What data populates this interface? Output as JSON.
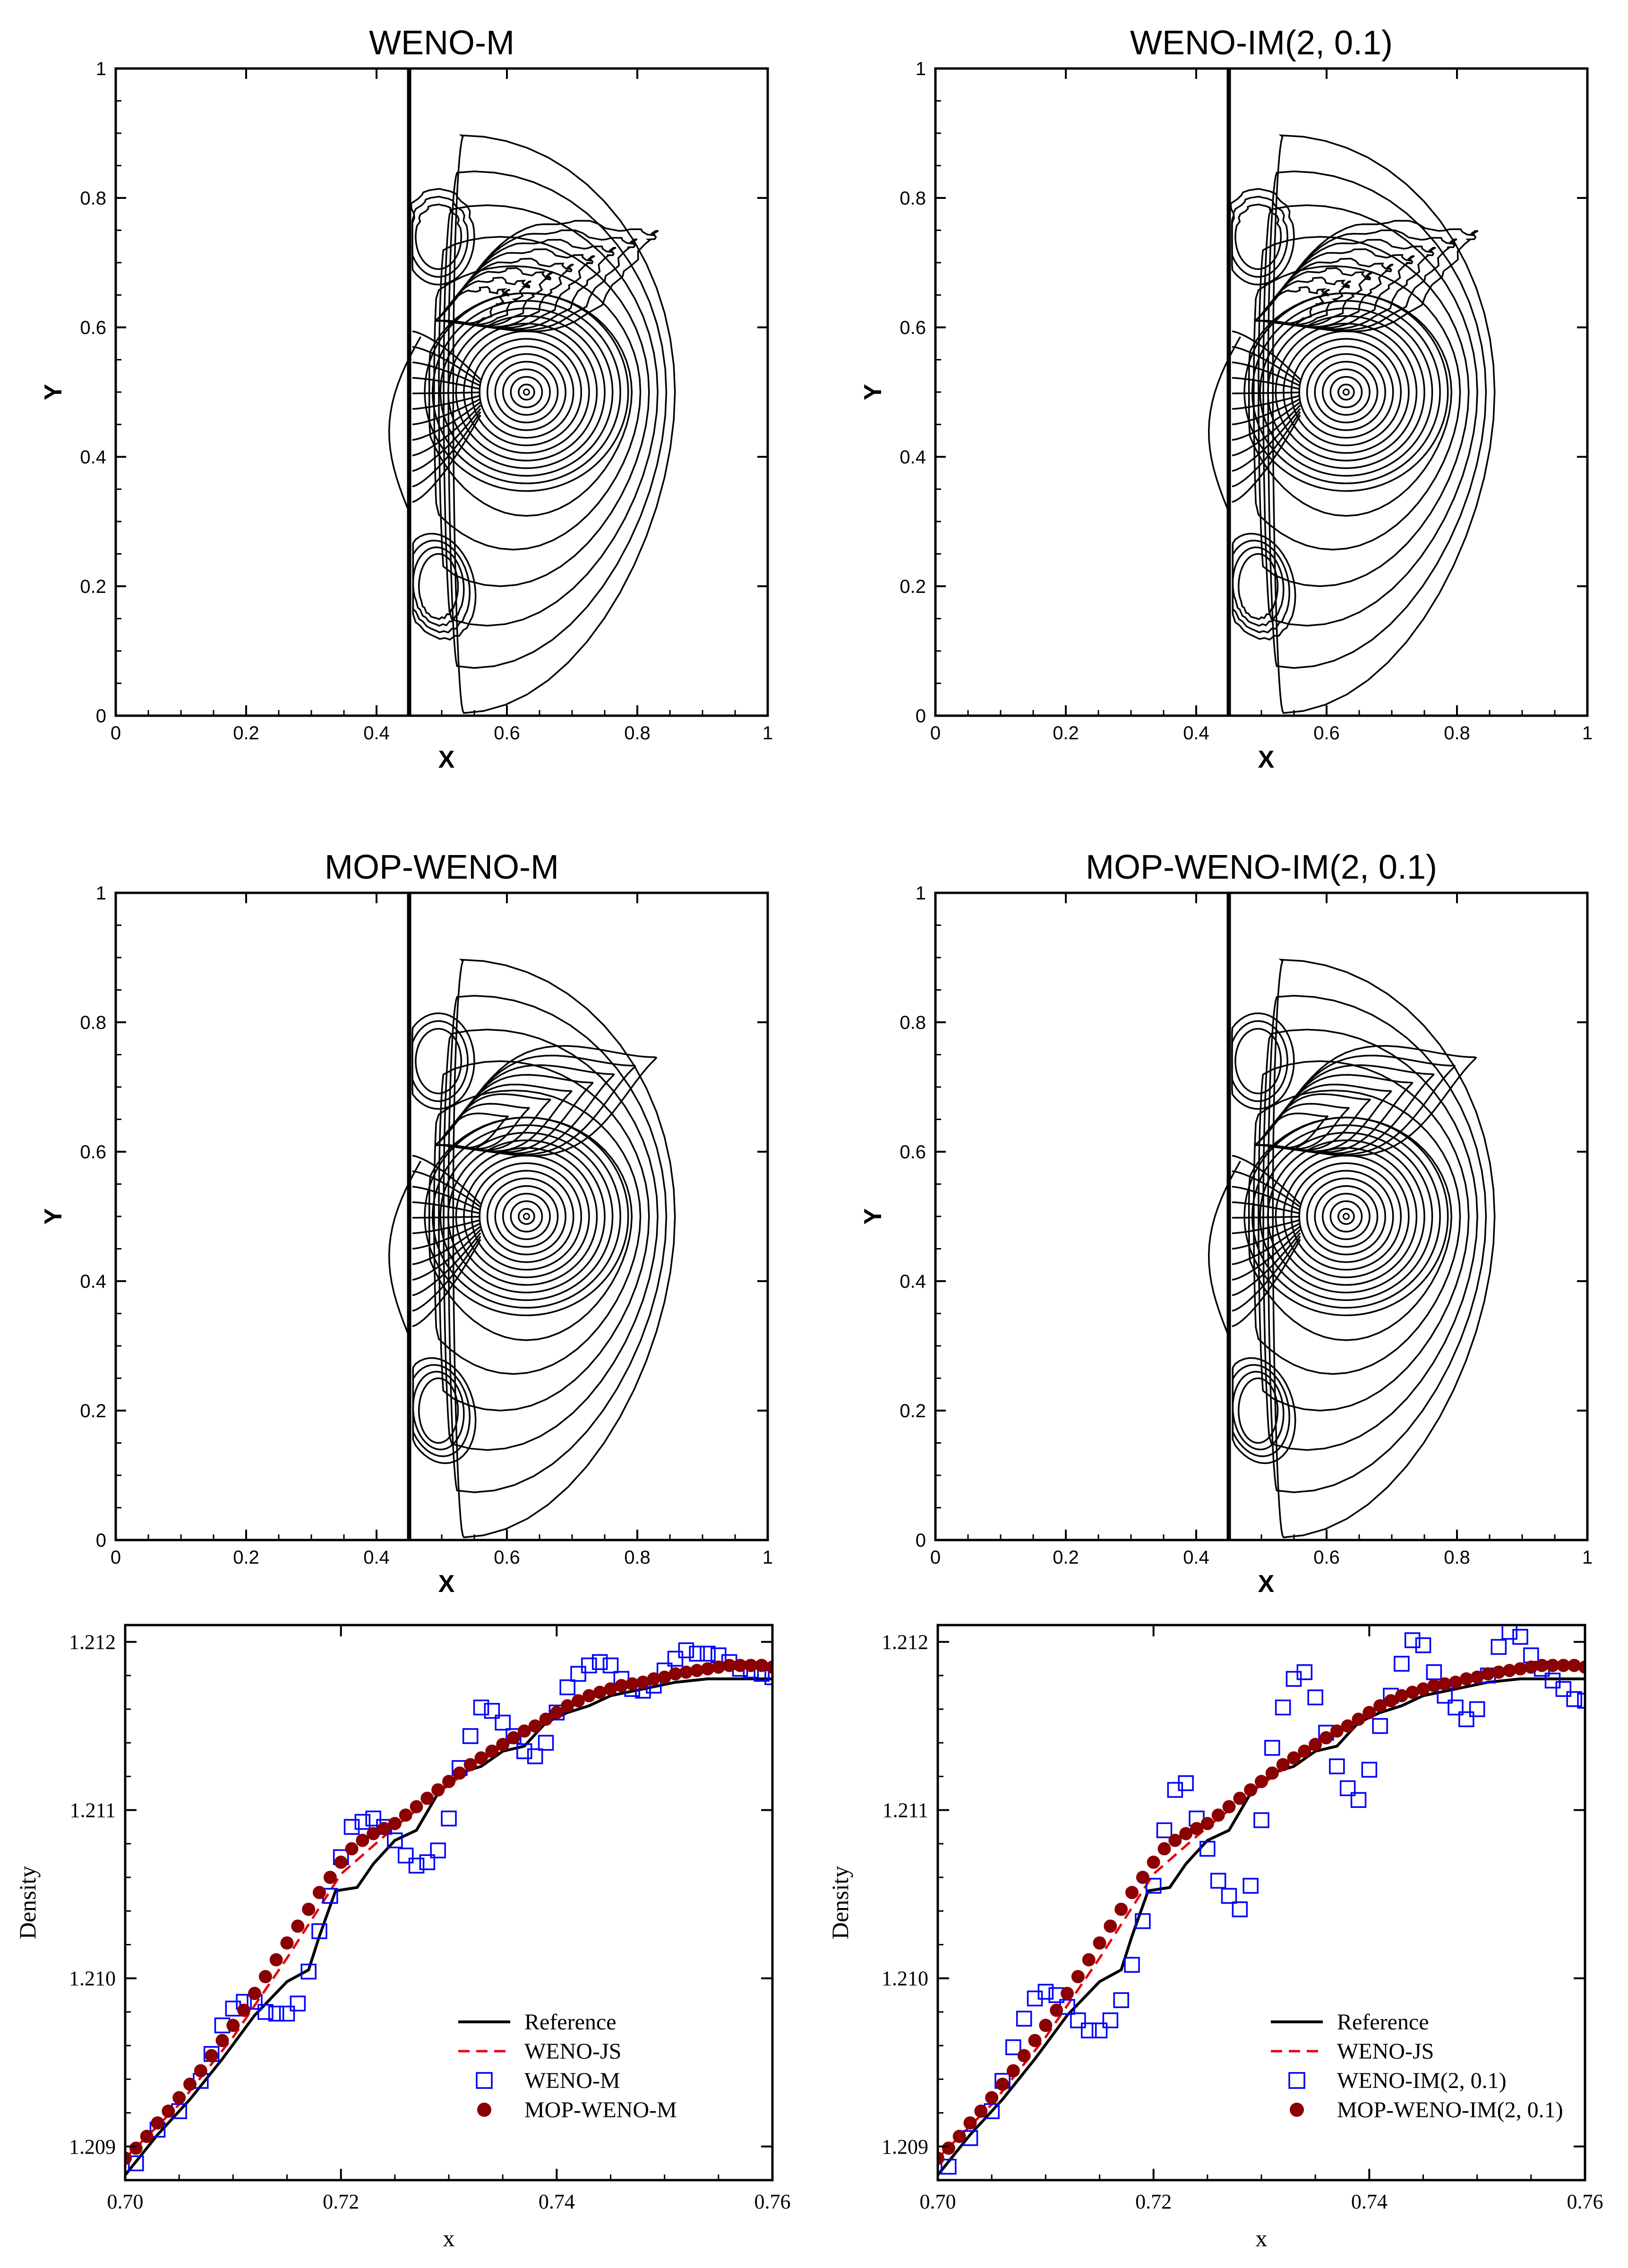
{
  "chart_data": [
    {
      "type": "contour",
      "title": "WENO-M",
      "xlabel": "X",
      "ylabel": "Y",
      "xlim": [
        0,
        1
      ],
      "ylim": [
        0,
        1
      ],
      "xticks": [
        "0",
        "0.2",
        "0.4",
        "0.6",
        "0.8",
        "1"
      ],
      "yticks": [
        "0",
        "0.2",
        "0.4",
        "0.6",
        "0.8",
        "1"
      ],
      "features": {
        "shock_x": 0.45,
        "vortex_center": [
          0.63,
          0.5
        ],
        "noisy_upper_lobe": true
      }
    },
    {
      "type": "contour",
      "title": "WENO-IM(2, 0.1)",
      "xlabel": "X",
      "ylabel": "Y",
      "xlim": [
        0,
        1
      ],
      "ylim": [
        0,
        1
      ],
      "xticks": [
        "0",
        "0.2",
        "0.4",
        "0.6",
        "0.8",
        "1"
      ],
      "yticks": [
        "0",
        "0.2",
        "0.4",
        "0.6",
        "0.8",
        "1"
      ],
      "features": {
        "shock_x": 0.45,
        "vortex_center": [
          0.63,
          0.5
        ],
        "noisy_upper_lobe": true
      }
    },
    {
      "type": "contour",
      "title": "MOP-WENO-M",
      "xlabel": "X",
      "ylabel": "Y",
      "xlim": [
        0,
        1
      ],
      "ylim": [
        0,
        1
      ],
      "xticks": [
        "0",
        "0.2",
        "0.4",
        "0.6",
        "0.8",
        "1"
      ],
      "yticks": [
        "0",
        "0.2",
        "0.4",
        "0.6",
        "0.8",
        "1"
      ],
      "features": {
        "shock_x": 0.45,
        "vortex_center": [
          0.63,
          0.5
        ],
        "noisy_upper_lobe": false
      }
    },
    {
      "type": "contour",
      "title": "MOP-WENO-IM(2, 0.1)",
      "xlabel": "X",
      "ylabel": "Y",
      "xlim": [
        0,
        1
      ],
      "ylim": [
        0,
        1
      ],
      "xticks": [
        "0",
        "0.2",
        "0.4",
        "0.6",
        "0.8",
        "1"
      ],
      "yticks": [
        "0",
        "0.2",
        "0.4",
        "0.6",
        "0.8",
        "1"
      ],
      "features": {
        "shock_x": 0.45,
        "vortex_center": [
          0.63,
          0.5
        ],
        "noisy_upper_lobe": false
      }
    },
    {
      "type": "line",
      "xlabel": "x",
      "ylabel": "Density",
      "xlim": [
        0.7,
        0.76
      ],
      "ylim": [
        1.2088,
        1.2121
      ],
      "xticks": [
        "0.70",
        "0.72",
        "0.74",
        "0.76"
      ],
      "yticks": [
        "1.209",
        "1.210",
        "1.211",
        "1.212"
      ],
      "legend_position": "bottom-right",
      "series": [
        {
          "name": "Reference",
          "style": "solid",
          "color": "#000000",
          "x": [
            0.7,
            0.703,
            0.706,
            0.709,
            0.712,
            0.715,
            0.717,
            0.718,
            0.7195,
            0.7215,
            0.723,
            0.725,
            0.727,
            0.729,
            0.731,
            0.733,
            0.735,
            0.737,
            0.739,
            0.741,
            0.743,
            0.745,
            0.748,
            0.751,
            0.754,
            0.757,
            0.76
          ],
          "y": [
            1.20883,
            1.20907,
            1.20928,
            1.20952,
            1.20978,
            1.20998,
            1.21005,
            1.21025,
            1.21052,
            1.21054,
            1.21068,
            1.21082,
            1.21088,
            1.2111,
            1.21122,
            1.21126,
            1.21135,
            1.21138,
            1.21152,
            1.21158,
            1.21162,
            1.21168,
            1.21172,
            1.21176,
            1.21178,
            1.21178,
            1.21178
          ]
        },
        {
          "name": "WENO-JS",
          "style": "dashed",
          "color": "#e8000b",
          "x": [
            0.7,
            0.705,
            0.71,
            0.715,
            0.72,
            0.725,
            0.73,
            0.735,
            0.74,
            0.745,
            0.75,
            0.755,
            0.76
          ],
          "y": [
            1.20893,
            1.20925,
            1.20965,
            1.21012,
            1.21062,
            1.2109,
            1.21115,
            1.21138,
            1.21158,
            1.21172,
            1.21181,
            1.21186,
            1.21187
          ]
        },
        {
          "name": "WENO-M",
          "style": "open-square",
          "color": "#0000ff",
          "x": [
            0.701,
            0.703,
            0.705,
            0.707,
            0.708,
            0.709,
            0.71,
            0.711,
            0.712,
            0.713,
            0.714,
            0.715,
            0.716,
            0.717,
            0.718,
            0.719,
            0.72,
            0.721,
            0.722,
            0.723,
            0.724,
            0.725,
            0.726,
            0.727,
            0.728,
            0.729,
            0.73,
            0.731,
            0.732,
            0.733,
            0.734,
            0.735,
            0.736,
            0.737,
            0.738,
            0.739,
            0.74,
            0.741,
            0.742,
            0.743,
            0.744,
            0.745,
            0.746,
            0.747,
            0.748,
            0.749,
            0.75,
            0.751,
            0.752,
            0.753,
            0.754,
            0.755,
            0.756,
            0.757,
            0.758,
            0.759,
            0.76
          ],
          "y": [
            1.2089,
            1.2091,
            1.20921,
            1.20939,
            1.20955,
            1.20972,
            1.20982,
            1.20986,
            1.20986,
            1.2098,
            1.20979,
            1.20979,
            1.20985,
            1.21004,
            1.21028,
            1.21049,
            1.21072,
            1.2109,
            1.21093,
            1.21095,
            1.2109,
            1.21082,
            1.21073,
            1.21067,
            1.21069,
            1.21076,
            1.21095,
            1.21125,
            1.21144,
            1.21161,
            1.21159,
            1.21152,
            1.21144,
            1.21135,
            1.21132,
            1.2114,
            1.21158,
            1.21173,
            1.21181,
            1.21186,
            1.21188,
            1.21186,
            1.21178,
            1.21172,
            1.21171,
            1.21174,
            1.21183,
            1.2119,
            1.21195,
            1.21193,
            1.21193,
            1.21192,
            1.21188,
            1.21184,
            1.21183,
            1.21181,
            1.21179
          ]
        },
        {
          "name": "MOP-WENO-M",
          "style": "filled-circle",
          "color": "#8b0000",
          "x": [
            0.7,
            0.701,
            0.702,
            0.703,
            0.704,
            0.705,
            0.706,
            0.707,
            0.708,
            0.709,
            0.71,
            0.711,
            0.712,
            0.713,
            0.714,
            0.715,
            0.716,
            0.717,
            0.718,
            0.719,
            0.72,
            0.721,
            0.722,
            0.723,
            0.724,
            0.725,
            0.726,
            0.727,
            0.728,
            0.729,
            0.73,
            0.731,
            0.732,
            0.733,
            0.734,
            0.735,
            0.736,
            0.737,
            0.738,
            0.739,
            0.74,
            0.741,
            0.742,
            0.743,
            0.744,
            0.745,
            0.746,
            0.747,
            0.748,
            0.749,
            0.75,
            0.751,
            0.752,
            0.753,
            0.754,
            0.755,
            0.756,
            0.757,
            0.758,
            0.759,
            0.76
          ],
          "y": [
            1.20893,
            1.20899,
            1.20906,
            1.20914,
            1.20921,
            1.20929,
            1.20937,
            1.20945,
            1.20954,
            1.20963,
            1.20972,
            1.20981,
            1.20991,
            1.21001,
            1.21011,
            1.21021,
            1.21031,
            1.21041,
            1.21051,
            1.2106,
            1.21069,
            1.21077,
            1.21082,
            1.21086,
            1.21089,
            1.21092,
            1.21097,
            1.21102,
            1.21107,
            1.21112,
            1.21117,
            1.21122,
            1.21127,
            1.21131,
            1.21135,
            1.21139,
            1.21143,
            1.21147,
            1.2115,
            1.21154,
            1.21158,
            1.21162,
            1.21165,
            1.21168,
            1.2117,
            1.21172,
            1.21174,
            1.21175,
            1.21176,
            1.21178,
            1.21179,
            1.21181,
            1.21182,
            1.21183,
            1.21184,
            1.21185,
            1.21186,
            1.21186,
            1.21186,
            1.21186,
            1.21185
          ]
        }
      ]
    },
    {
      "type": "line",
      "xlabel": "x",
      "ylabel": "Density",
      "xlim": [
        0.7,
        0.76
      ],
      "ylim": [
        1.2088,
        1.2121
      ],
      "xticks": [
        "0.70",
        "0.72",
        "0.74",
        "0.76"
      ],
      "yticks": [
        "1.209",
        "1.210",
        "1.211",
        "1.212"
      ],
      "legend_position": "bottom-right",
      "series": [
        {
          "name": "Reference",
          "style": "solid",
          "color": "#000000",
          "x": [
            0.7,
            0.703,
            0.706,
            0.709,
            0.712,
            0.715,
            0.717,
            0.718,
            0.7195,
            0.7215,
            0.723,
            0.725,
            0.727,
            0.729,
            0.731,
            0.733,
            0.735,
            0.737,
            0.739,
            0.741,
            0.743,
            0.745,
            0.748,
            0.751,
            0.754,
            0.757,
            0.76
          ],
          "y": [
            1.20883,
            1.20907,
            1.20928,
            1.20952,
            1.20978,
            1.20998,
            1.21005,
            1.21025,
            1.21052,
            1.21054,
            1.21068,
            1.21082,
            1.21088,
            1.2111,
            1.21122,
            1.21126,
            1.21135,
            1.21138,
            1.21152,
            1.21158,
            1.21162,
            1.21168,
            1.21172,
            1.21176,
            1.21178,
            1.21178,
            1.21178
          ]
        },
        {
          "name": "WENO-JS",
          "style": "dashed",
          "color": "#e8000b",
          "x": [
            0.7,
            0.705,
            0.71,
            0.715,
            0.72,
            0.725,
            0.73,
            0.735,
            0.74,
            0.745,
            0.75,
            0.755,
            0.76
          ],
          "y": [
            1.20893,
            1.20925,
            1.20965,
            1.21012,
            1.21062,
            1.2109,
            1.21115,
            1.21138,
            1.21158,
            1.21172,
            1.21181,
            1.21186,
            1.21187
          ]
        },
        {
          "name": "WENO-IM(2, 0.1)",
          "style": "open-square",
          "color": "#0000ff",
          "x": [
            0.701,
            0.703,
            0.705,
            0.706,
            0.707,
            0.708,
            0.709,
            0.71,
            0.711,
            0.712,
            0.713,
            0.714,
            0.715,
            0.716,
            0.717,
            0.718,
            0.719,
            0.72,
            0.721,
            0.722,
            0.723,
            0.724,
            0.725,
            0.726,
            0.727,
            0.728,
            0.729,
            0.73,
            0.731,
            0.732,
            0.733,
            0.734,
            0.735,
            0.736,
            0.737,
            0.738,
            0.739,
            0.74,
            0.741,
            0.742,
            0.743,
            0.744,
            0.745,
            0.746,
            0.747,
            0.748,
            0.749,
            0.75,
            0.751,
            0.752,
            0.753,
            0.754,
            0.755,
            0.756,
            0.757,
            0.758,
            0.759,
            0.76
          ],
          "y": [
            1.20888,
            1.20905,
            1.20921,
            1.20939,
            1.20959,
            1.20976,
            1.20988,
            1.20992,
            1.2099,
            1.20983,
            1.20975,
            1.20969,
            1.20969,
            1.20975,
            1.20987,
            1.21008,
            1.21034,
            1.21055,
            1.21088,
            1.21112,
            1.21116,
            1.21095,
            1.21077,
            1.21058,
            1.21049,
            1.21041,
            1.21055,
            1.21094,
            1.21137,
            1.21161,
            1.21178,
            1.21182,
            1.21167,
            1.21146,
            1.21126,
            1.21113,
            1.21106,
            1.21124,
            1.2115,
            1.21168,
            1.21187,
            1.21201,
            1.21198,
            1.21182,
            1.21168,
            1.21161,
            1.21154,
            1.2116,
            1.2118,
            1.21197,
            1.21206,
            1.21203,
            1.21192,
            1.21184,
            1.21177,
            1.21172,
            1.21166,
            1.21165
          ]
        },
        {
          "name": "MOP-WENO-IM(2, 0.1)",
          "style": "filled-circle",
          "color": "#8b0000",
          "x": [
            0.7,
            0.701,
            0.702,
            0.703,
            0.704,
            0.705,
            0.706,
            0.707,
            0.708,
            0.709,
            0.71,
            0.711,
            0.712,
            0.713,
            0.714,
            0.715,
            0.716,
            0.717,
            0.718,
            0.719,
            0.72,
            0.721,
            0.722,
            0.723,
            0.724,
            0.725,
            0.726,
            0.727,
            0.728,
            0.729,
            0.73,
            0.731,
            0.732,
            0.733,
            0.734,
            0.735,
            0.736,
            0.737,
            0.738,
            0.739,
            0.74,
            0.741,
            0.742,
            0.743,
            0.744,
            0.745,
            0.746,
            0.747,
            0.748,
            0.749,
            0.75,
            0.751,
            0.752,
            0.753,
            0.754,
            0.755,
            0.756,
            0.757,
            0.758,
            0.759,
            0.76
          ],
          "y": [
            1.20893,
            1.20899,
            1.20906,
            1.20914,
            1.20921,
            1.20929,
            1.20937,
            1.20945,
            1.20954,
            1.20963,
            1.20972,
            1.20981,
            1.20991,
            1.21001,
            1.21011,
            1.21021,
            1.21031,
            1.21041,
            1.21051,
            1.2106,
            1.21069,
            1.21077,
            1.21082,
            1.21086,
            1.21089,
            1.21092,
            1.21097,
            1.21102,
            1.21107,
            1.21112,
            1.21117,
            1.21122,
            1.21127,
            1.21131,
            1.21135,
            1.21139,
            1.21143,
            1.21147,
            1.2115,
            1.21154,
            1.21158,
            1.21162,
            1.21165,
            1.21168,
            1.2117,
            1.21172,
            1.21174,
            1.21175,
            1.21176,
            1.21178,
            1.21179,
            1.21181,
            1.21182,
            1.21183,
            1.21184,
            1.21185,
            1.21186,
            1.21186,
            1.21186,
            1.21186,
            1.21185
          ]
        }
      ]
    }
  ]
}
